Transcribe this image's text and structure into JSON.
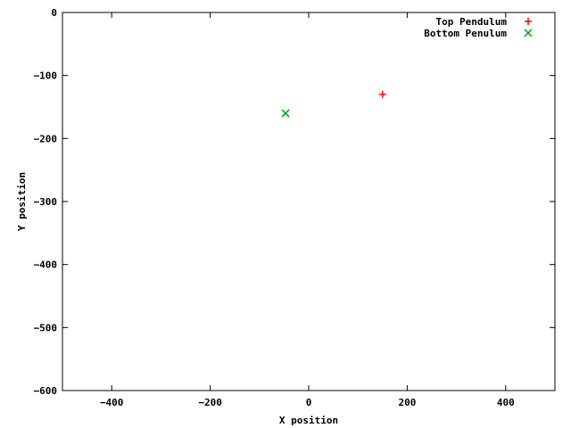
{
  "chart_data": {
    "type": "scatter",
    "title": "",
    "xlabel": "X position",
    "ylabel": "Y position",
    "xlim": [
      -500,
      500
    ],
    "ylim": [
      -600,
      0
    ],
    "xticks": [
      -400,
      -200,
      0,
      200,
      400
    ],
    "yticks": [
      0,
      -100,
      -200,
      -300,
      -400,
      -500,
      -600
    ],
    "xtick_labels": [
      "−400",
      "−200",
      "0",
      "200",
      "400"
    ],
    "ytick_labels": [
      "0",
      "−100",
      "−200",
      "−300",
      "−400",
      "−500",
      "−600"
    ],
    "grid": false,
    "legend_position": "top-right",
    "series": [
      {
        "name": "Top Pendulum",
        "marker": "plus",
        "color": "#ff0000",
        "points": [
          {
            "x": 150,
            "y": -130
          }
        ]
      },
      {
        "name": "Bottom Penulum",
        "marker": "cross",
        "color": "#00a000",
        "points": [
          {
            "x": -47,
            "y": -160
          }
        ]
      }
    ]
  }
}
